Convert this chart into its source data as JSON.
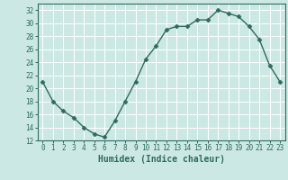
{
  "x": [
    0,
    1,
    2,
    3,
    4,
    5,
    6,
    7,
    8,
    9,
    10,
    11,
    12,
    13,
    14,
    15,
    16,
    17,
    18,
    19,
    20,
    21,
    22,
    23
  ],
  "y": [
    21,
    18,
    16.5,
    15.5,
    14,
    13,
    12.5,
    15,
    18,
    21,
    24.5,
    26.5,
    29,
    29.5,
    29.5,
    30.5,
    30.5,
    32,
    31.5,
    31,
    29.5,
    27.5,
    23.5,
    21
  ],
  "line_color": "#2e6b5e",
  "marker": "D",
  "marker_size": 2.5,
  "bg_color": "#cce8e4",
  "grid_color": "#ffffff",
  "xlabel": "Humidex (Indice chaleur)",
  "ylim": [
    12,
    33
  ],
  "xlim": [
    -0.5,
    23.5
  ],
  "yticks": [
    12,
    14,
    16,
    18,
    20,
    22,
    24,
    26,
    28,
    30,
    32
  ],
  "xticks": [
    0,
    1,
    2,
    3,
    4,
    5,
    6,
    7,
    8,
    9,
    10,
    11,
    12,
    13,
    14,
    15,
    16,
    17,
    18,
    19,
    20,
    21,
    22,
    23
  ],
  "tick_label_size": 5.5,
  "xlabel_size": 7,
  "line_width": 1.0,
  "spine_color": "#2e6b5e",
  "tick_color": "#2e6b5e",
  "label_color": "#2e6b5e"
}
